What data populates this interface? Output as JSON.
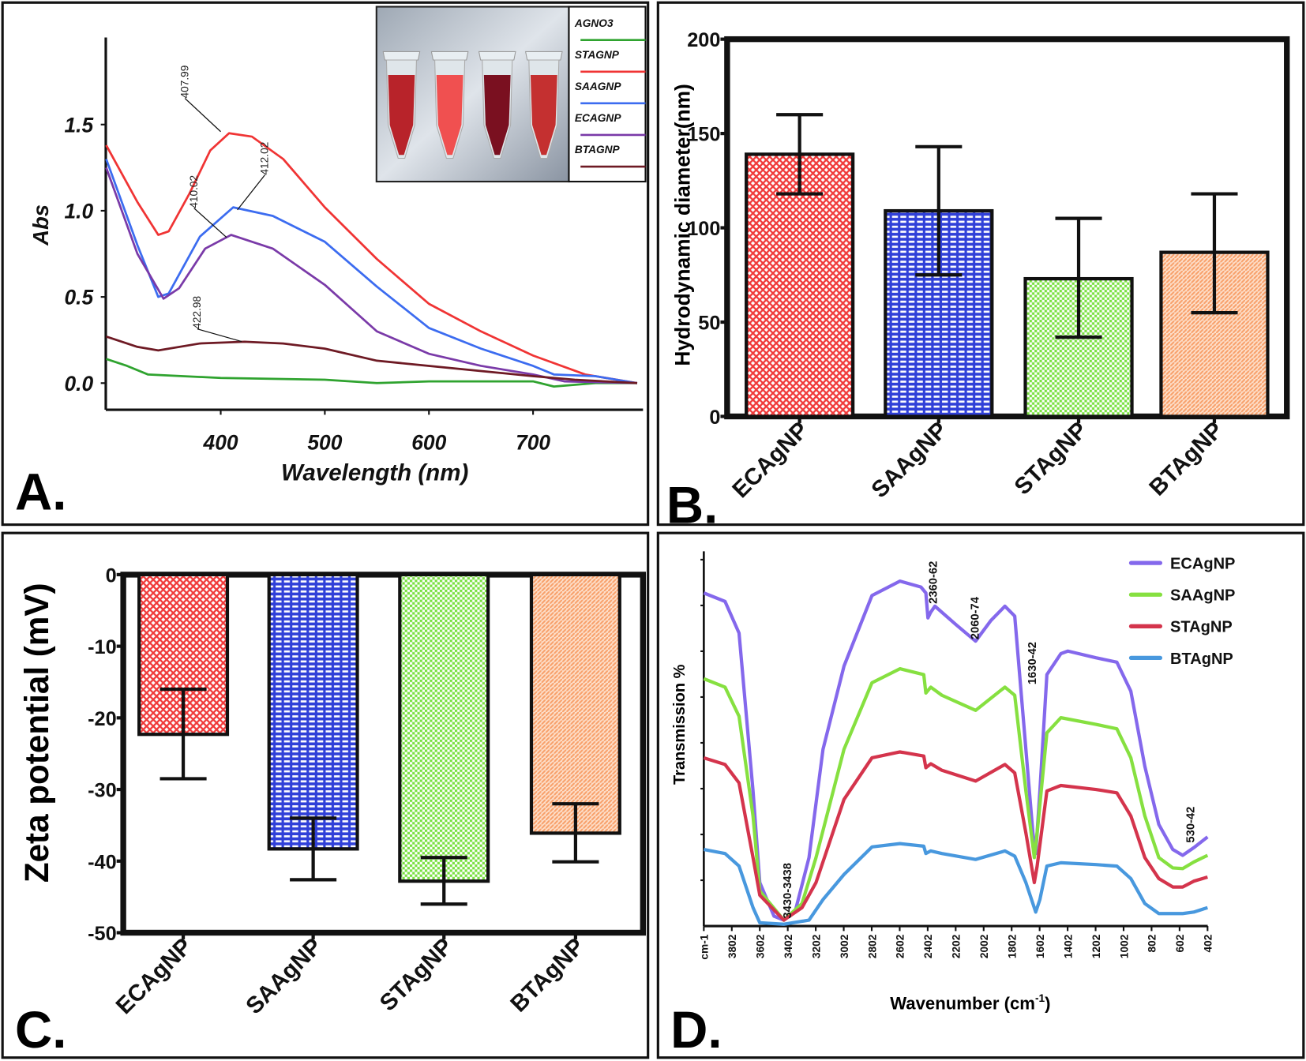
{
  "chart_data": [
    {
      "panel_label": "A.",
      "type": "line",
      "xlabel": "Wavelength (nm)",
      "ylabel": "Abs",
      "xlim": [
        290,
        806
      ],
      "ylim": [
        -0.15,
        2.0
      ],
      "xticks": [
        "400",
        "500",
        "600",
        "700"
      ],
      "yticks": [
        "0.0",
        "0.5",
        "1.0",
        "1.5"
      ],
      "legend_placement": "top-right (inset beside photo of four tubes)",
      "legend": [
        "AGNO3",
        "STAGNP",
        "SAAGNP",
        "ECAGNP",
        "BTAGNP"
      ],
      "annotations": [
        "407.99",
        "412.02",
        "410.02",
        "422.98"
      ],
      "series": [
        {
          "name": "AGNO3",
          "color": "#2fa32f",
          "x": [
            290,
            310,
            330,
            400,
            500,
            550,
            600,
            700,
            720,
            760,
            800
          ],
          "y": [
            0.14,
            0.1,
            0.05,
            0.03,
            0.02,
            0.0,
            0.01,
            0.01,
            -0.02,
            0.0,
            0.0
          ]
        },
        {
          "name": "STAGNP",
          "color": "#f03434",
          "x": [
            290,
            320,
            340,
            350,
            370,
            390,
            408,
            430,
            460,
            500,
            550,
            600,
            650,
            700,
            750,
            800
          ],
          "y": [
            1.38,
            1.05,
            0.86,
            0.88,
            1.1,
            1.35,
            1.45,
            1.43,
            1.3,
            1.02,
            0.72,
            0.46,
            0.3,
            0.16,
            0.05,
            0.0
          ]
        },
        {
          "name": "SAAGNP",
          "color": "#3c6cf0",
          "x": [
            290,
            320,
            340,
            350,
            380,
            412,
            450,
            500,
            550,
            600,
            650,
            700,
            720,
            760,
            800
          ],
          "y": [
            1.3,
            0.8,
            0.5,
            0.52,
            0.85,
            1.02,
            0.97,
            0.82,
            0.56,
            0.32,
            0.2,
            0.1,
            0.05,
            0.04,
            0.0
          ]
        },
        {
          "name": "ECAGNP",
          "color": "#7a3aa8",
          "x": [
            290,
            320,
            345,
            360,
            385,
            410,
            450,
            500,
            550,
            600,
            650,
            700,
            730,
            800
          ],
          "y": [
            1.25,
            0.75,
            0.49,
            0.55,
            0.78,
            0.86,
            0.78,
            0.57,
            0.3,
            0.17,
            0.1,
            0.05,
            0.01,
            0.0
          ]
        },
        {
          "name": "BTAGNP",
          "color": "#6e1a24",
          "x": [
            290,
            320,
            340,
            380,
            423,
            460,
            500,
            550,
            600,
            650,
            700,
            740,
            800
          ],
          "y": [
            0.27,
            0.21,
            0.19,
            0.23,
            0.24,
            0.23,
            0.2,
            0.13,
            0.1,
            0.07,
            0.04,
            0.02,
            0.0
          ]
        }
      ]
    },
    {
      "panel_label": "B.",
      "type": "bar",
      "ylabel": "Hydrodynamic diameter(nm)",
      "ylim": [
        0,
        200
      ],
      "yticks": [
        "0",
        "50",
        "100",
        "150",
        "200"
      ],
      "categories": [
        "ECAgNP",
        "SAAgNP",
        "STAgNP",
        "BTAgNP"
      ],
      "values": [
        139,
        109,
        73,
        87
      ],
      "error_low": [
        118,
        75,
        42,
        55
      ],
      "error_high": [
        160,
        143,
        105,
        118
      ],
      "colors": [
        "#f03a3a",
        "#3040d8",
        "#78e040",
        "#f8a06a"
      ]
    },
    {
      "panel_label": "C.",
      "type": "bar",
      "ylabel": "Zeta potential (mV)",
      "ylim": [
        -50,
        0
      ],
      "yticks": [
        "0",
        "-10",
        "-20",
        "-30",
        "-40",
        "-50"
      ],
      "categories": [
        "ECAgNP",
        "SAAgNP",
        "STAgNP",
        "BTAgNP"
      ],
      "values": [
        -22.3,
        -38.3,
        -42.8,
        -36.1
      ],
      "error_low": [
        -28.5,
        -42.6,
        -46.0,
        -40.1
      ],
      "error_high": [
        -16.0,
        -34.0,
        -39.5,
        -32.0
      ],
      "colors": [
        "#f03a3a",
        "#3040d8",
        "#78e040",
        "#f8a06a"
      ]
    },
    {
      "panel_label": "D.",
      "type": "line",
      "xlabel_main": "Wavenumber (cm",
      "xlabel_sup": "-1",
      "xlabel_end": ")",
      "ylabel": "Transmission %",
      "xlim": [
        4002,
        402
      ],
      "x_reversed": true,
      "ylim": [
        0,
        100
      ],
      "xticks": [
        "cm-1",
        "3802",
        "3602",
        "3402",
        "3202",
        "3002",
        "2802",
        "2602",
        "2402",
        "2202",
        "2002",
        "1802",
        "1602",
        "1402",
        "1202",
        "1002",
        "802",
        "602",
        "402"
      ],
      "legend_placement": "top-right",
      "annotations": [
        "2360-62",
        "2060-74",
        "1630-42",
        "530-42",
        "3430-3438"
      ],
      "series": [
        {
          "name": "ECAgNP",
          "color": "#8468ec",
          "x": [
            4002,
            3850,
            3750,
            3650,
            3602,
            3500,
            3430,
            3350,
            3250,
            3150,
            3000,
            2800,
            2600,
            2450,
            2415,
            2400,
            2380,
            2350,
            2200,
            2060,
            1950,
            1850,
            1780,
            1700,
            1650,
            1630,
            1600,
            1550,
            1450,
            1400,
            1200,
            1050,
            950,
            850,
            750,
            650,
            580,
            500,
            402
          ],
          "y": [
            90.5,
            88.2,
            79.6,
            36.7,
            11.8,
            2.7,
            1.6,
            3.8,
            18.6,
            48,
            70.6,
            89.8,
            93.7,
            92.1,
            90.5,
            83.7,
            85.3,
            86.9,
            81.9,
            77.4,
            83,
            86.9,
            84.2,
            48,
            25.3,
            19.7,
            36.7,
            68.3,
            74,
            74.7,
            72.9,
            71.7,
            63.8,
            43.4,
            27.6,
            20.8,
            19.2,
            21.3,
            24.2
          ]
        },
        {
          "name": "SAAgNP",
          "color": "#86e040",
          "x": [
            4002,
            3850,
            3750,
            3650,
            3602,
            3430,
            3300,
            3200,
            3000,
            2800,
            2600,
            2430,
            2415,
            2380,
            2300,
            2060,
            1850,
            1780,
            1700,
            1640,
            1620,
            1550,
            1450,
            1200,
            1050,
            950,
            850,
            750,
            650,
            580,
            500,
            402
          ],
          "y": [
            67.2,
            64.9,
            57,
            29.9,
            9.5,
            1.6,
            6.1,
            18.6,
            48,
            66.1,
            69.9,
            68.3,
            63.3,
            64.9,
            62.7,
            58.6,
            64.9,
            62.7,
            36.7,
            18.6,
            25.3,
            52.5,
            56.6,
            54.8,
            53.6,
            45.7,
            29.9,
            18.6,
            15.8,
            15.6,
            17.4,
            19.2
          ]
        },
        {
          "name": "STAgNP",
          "color": "#d4344c",
          "x": [
            4002,
            3850,
            3750,
            3650,
            3602,
            3430,
            3300,
            3200,
            3000,
            2800,
            2600,
            2430,
            2415,
            2380,
            2300,
            2060,
            1850,
            1780,
            1700,
            1640,
            1620,
            1550,
            1450,
            1200,
            1050,
            950,
            850,
            750,
            650,
            580,
            500,
            402
          ],
          "y": [
            45.7,
            43.9,
            38.9,
            18.6,
            8.4,
            1.6,
            5,
            11.8,
            34.4,
            45.7,
            47.3,
            46.2,
            43,
            44.1,
            42.3,
            39.4,
            43.9,
            41.6,
            25.3,
            11.8,
            16.3,
            36.7,
            38.2,
            37.1,
            36.2,
            29.9,
            18.6,
            12.9,
            10.6,
            10.6,
            12.2,
            13.3
          ]
        },
        {
          "name": "BTAgNP",
          "color": "#4898de",
          "x": [
            4002,
            3850,
            3750,
            3650,
            3602,
            3430,
            3250,
            3150,
            3000,
            2800,
            2600,
            2430,
            2415,
            2380,
            2300,
            2060,
            1850,
            1780,
            1700,
            1630,
            1600,
            1550,
            1450,
            1200,
            1050,
            950,
            850,
            750,
            650,
            580,
            500,
            402
          ],
          "y": [
            20.8,
            19.7,
            16.3,
            5,
            0.9,
            0.5,
            1.6,
            7.2,
            14,
            21.5,
            22.4,
            21.7,
            19.7,
            20.4,
            19.7,
            18.1,
            20.4,
            19,
            11.8,
            3.8,
            7.2,
            16.3,
            17.2,
            16.7,
            16.3,
            12.9,
            6.1,
            3.4,
            3.4,
            3.4,
            3.8,
            5
          ]
        }
      ]
    }
  ]
}
